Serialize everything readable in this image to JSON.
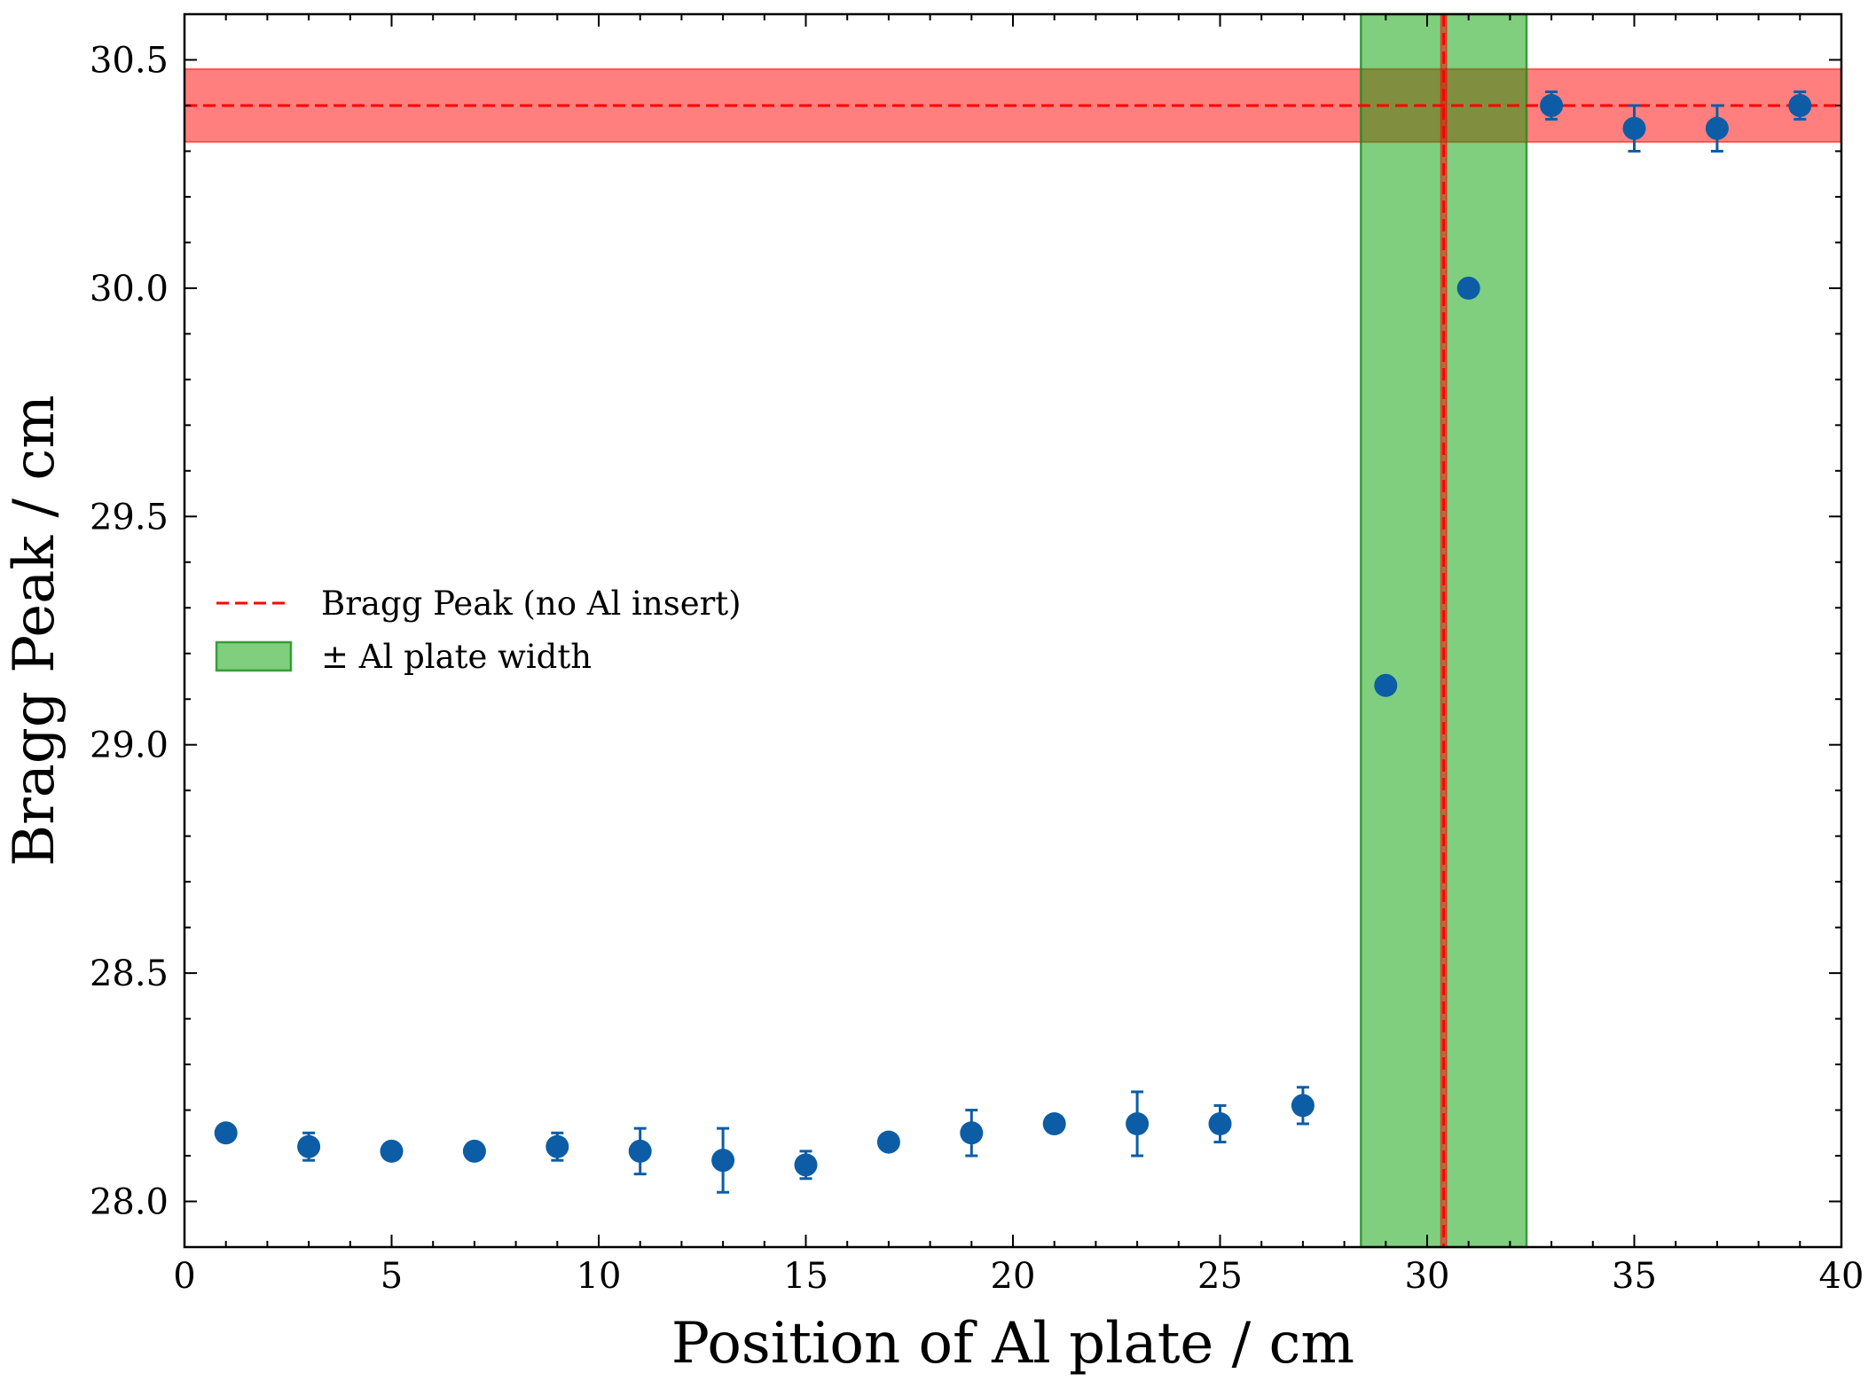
{
  "chart_data": {
    "type": "scatter",
    "xlabel": "Position of Al plate / cm",
    "ylabel": "Bragg Peak / cm",
    "xlim": [
      0,
      40
    ],
    "ylim": [
      27.9,
      30.6
    ],
    "x_ticks": [
      "0",
      "5",
      "10",
      "15",
      "20",
      "25",
      "30",
      "35",
      "40"
    ],
    "y_ticks": [
      "28.0",
      "28.5",
      "29.0",
      "29.5",
      "30.0",
      "30.5"
    ],
    "grid": false,
    "legend_placement": "center-left",
    "series": [
      {
        "type": "scatter_errorbar",
        "color": "#0c5da5",
        "points": [
          {
            "x": 1,
            "y": 28.15,
            "err": 0.0
          },
          {
            "x": 3,
            "y": 28.12,
            "err": 0.03
          },
          {
            "x": 5,
            "y": 28.11,
            "err": 0.0
          },
          {
            "x": 7,
            "y": 28.11,
            "err": 0.0
          },
          {
            "x": 9,
            "y": 28.12,
            "err": 0.03
          },
          {
            "x": 11,
            "y": 28.11,
            "err": 0.05
          },
          {
            "x": 13,
            "y": 28.09,
            "err": 0.07
          },
          {
            "x": 15,
            "y": 28.08,
            "err": 0.03
          },
          {
            "x": 17,
            "y": 28.13,
            "err": 0.0
          },
          {
            "x": 19,
            "y": 28.15,
            "err": 0.05
          },
          {
            "x": 21,
            "y": 28.17,
            "err": 0.0
          },
          {
            "x": 23,
            "y": 28.17,
            "err": 0.07
          },
          {
            "x": 25,
            "y": 28.17,
            "err": 0.04
          },
          {
            "x": 27,
            "y": 28.21,
            "err": 0.04
          },
          {
            "x": 29,
            "y": 29.13,
            "err": 0.0
          },
          {
            "x": 31,
            "y": 30.0,
            "err": 0.0
          },
          {
            "x": 33,
            "y": 30.4,
            "err": 0.03
          },
          {
            "x": 35,
            "y": 30.35,
            "err": 0.05
          },
          {
            "x": 37,
            "y": 30.35,
            "err": 0.05
          },
          {
            "x": 39,
            "y": 30.4,
            "err": 0.03
          }
        ]
      }
    ],
    "reference_line": {
      "name": "Bragg Peak (no Al insert)",
      "y": 30.4,
      "band": [
        30.32,
        30.48
      ],
      "color": "#ff0000",
      "style": "dashed"
    },
    "vertical_reference": {
      "x": 30.4,
      "band": [
        30.33,
        30.47
      ],
      "color": "#ff0000",
      "style": "dashed"
    },
    "vertical_band": {
      "name": "± Al plate width",
      "x_range": [
        28.4,
        32.4
      ],
      "color": "#00a000"
    }
  }
}
